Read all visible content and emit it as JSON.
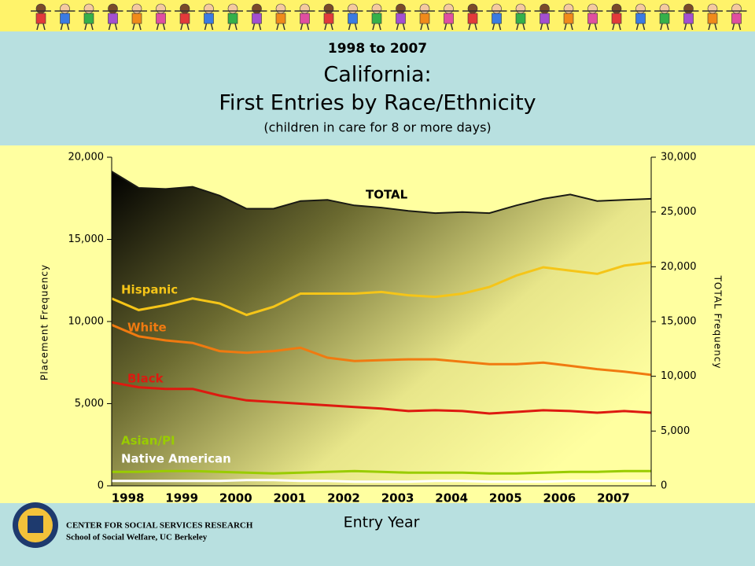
{
  "chart_data": {
    "type": "line",
    "header": [
      "1998 to 2007",
      "California:",
      "First Entries by Race/Ethnicity",
      "(children in care for 8 or more days)"
    ],
    "xlabel": "Entry Year",
    "ylabel": "Placement Frequency",
    "y2label": "TOTAL Frequency",
    "footer": [
      "CENTER FOR SOCIAL SERVICES RESEARCH",
      "School of Social Welfare, UC Berkeley"
    ],
    "x": [
      1997.7,
      1998.2,
      1998.7,
      1999.2,
      1999.7,
      2000.2,
      2000.7,
      2001.2,
      2001.7,
      2002.2,
      2002.7,
      2003.2,
      2003.7,
      2004.2,
      2004.7,
      2005.2,
      2005.7,
      2006.2,
      2006.7,
      2007.2,
      2007.7
    ],
    "xlim": [
      1997.7,
      2007.7
    ],
    "xticks": [
      1998,
      1999,
      2000,
      2001,
      2002,
      2003,
      2004,
      2005,
      2006,
      2007
    ],
    "ylim": [
      0,
      20000
    ],
    "yticks": [
      0,
      {
        "value": 5000,
        "label": "5,000"
      },
      {
        "value": 10000,
        "label": "10,000"
      },
      {
        "value": 15000,
        "label": "15,000"
      },
      {
        "value": 20000,
        "label": "20,000"
      }
    ],
    "y2lim": [
      0,
      30000
    ],
    "y2ticks": [
      0,
      {
        "value": 5000,
        "label": "5,000"
      },
      {
        "value": 10000,
        "label": "10,000"
      },
      {
        "value": 15000,
        "label": "15,000"
      },
      {
        "value": 20000,
        "label": "20,000"
      },
      {
        "value": 25000,
        "label": "25,000"
      },
      {
        "value": 30000,
        "label": "30,000"
      }
    ],
    "series": [
      {
        "name": "TOTAL",
        "color": "#1a1a14",
        "axis": "y2",
        "values": [
          28700,
          27200,
          27100,
          27300,
          26500,
          25300,
          25300,
          26000,
          26100,
          25600,
          25400,
          25100,
          24900,
          25000,
          24900,
          25600,
          26200,
          26600,
          26000,
          26100,
          26200
        ]
      },
      {
        "name": "Hispanic",
        "color": "#f5c518",
        "values": [
          11400,
          10700,
          11000,
          11400,
          11100,
          10400,
          10900,
          11700,
          11700,
          11700,
          11800,
          11600,
          11500,
          11700,
          12100,
          12800,
          13300,
          13100,
          12900,
          13400,
          13600
        ]
      },
      {
        "name": "White",
        "color": "#f07a10",
        "values": [
          9800,
          9100,
          8850,
          8700,
          8200,
          8100,
          8200,
          8400,
          7800,
          7600,
          7650,
          7700,
          7700,
          7550,
          7400,
          7400,
          7500,
          7300,
          7100,
          6950,
          6750
        ]
      },
      {
        "name": "Black",
        "color": "#dd1a10",
        "values": [
          6300,
          6000,
          5900,
          5900,
          5500,
          5200,
          5100,
          5000,
          4900,
          4800,
          4700,
          4550,
          4600,
          4550,
          4400,
          4500,
          4600,
          4550,
          4450,
          4550,
          4450
        ]
      },
      {
        "name": "Asian/PI",
        "color": "#99cc00",
        "values": [
          850,
          850,
          900,
          900,
          850,
          800,
          750,
          800,
          850,
          900,
          850,
          800,
          800,
          800,
          750,
          750,
          800,
          850,
          850,
          900,
          900
        ]
      },
      {
        "name": "Native American",
        "color": "#ffffff",
        "values": [
          300,
          300,
          300,
          300,
          300,
          350,
          350,
          300,
          300,
          250,
          250,
          250,
          300,
          300,
          250,
          250,
          250,
          300,
          300,
          300,
          300
        ]
      }
    ]
  }
}
